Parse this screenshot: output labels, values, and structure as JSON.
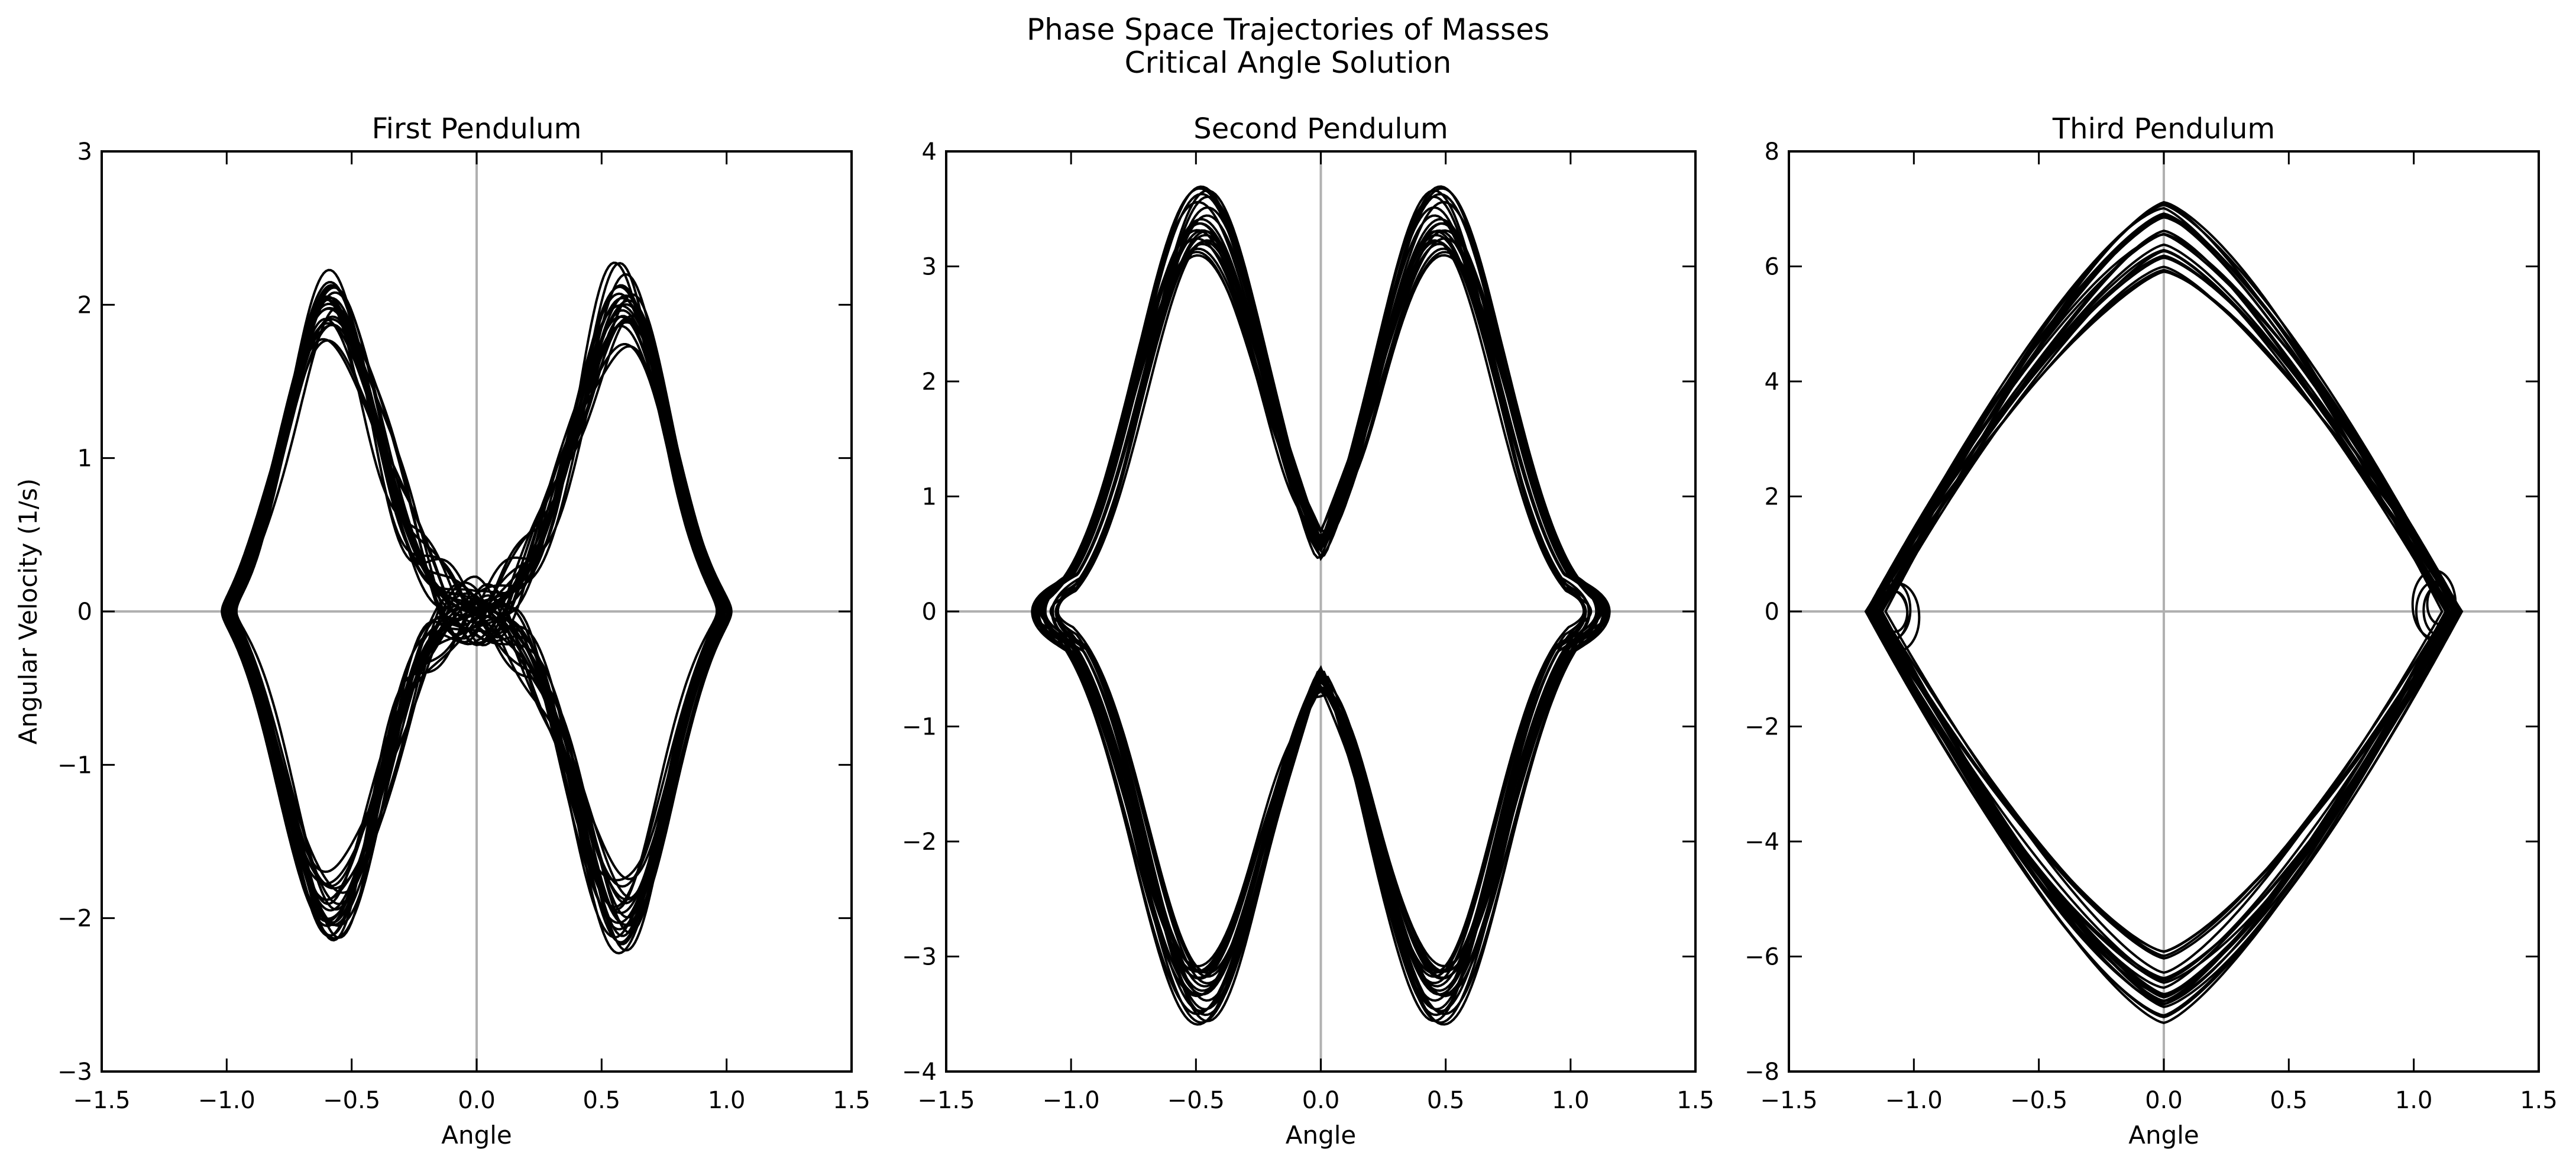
{
  "figure": {
    "title": "Phase Space Trajectories of Masses",
    "subtitle": "Critical Angle Solution",
    "line_color": "#000000",
    "zero_line_color": "#b0b0b0"
  },
  "chart_data": [
    {
      "type": "line",
      "title": "First Pendulum",
      "xlabel": "Angle",
      "ylabel": "Angular Velocity (1/s)",
      "xlim": [
        -1.5,
        1.5
      ],
      "ylim": [
        -3,
        3
      ],
      "xticks": [
        -1.5,
        -1.0,
        -0.5,
        0.0,
        0.5,
        1.0,
        1.5
      ],
      "xtick_labels": [
        "−1.5",
        "−1.0",
        "−0.5",
        "0.0",
        "0.5",
        "1.0",
        "1.5"
      ],
      "yticks": [
        -3,
        -2,
        -1,
        0,
        1,
        2,
        3
      ],
      "ytick_labels": [
        "−3",
        "−2",
        "−1",
        "0",
        "1",
        "2",
        "3"
      ],
      "zero_lines": true,
      "grid": false,
      "trajectory": {
        "amplitude_range": [
          0.95,
          1.03
        ],
        "peak_velocity": 2.65,
        "center_velocity": 1.75,
        "velocity_range": [
          1.3,
          2.65
        ],
        "loops": 22
      }
    },
    {
      "type": "line",
      "title": "Second Pendulum",
      "xlabel": "Angle",
      "ylabel": "",
      "xlim": [
        -1.5,
        1.5
      ],
      "ylim": [
        -4,
        4
      ],
      "xticks": [
        -1.5,
        -1.0,
        -0.5,
        0.0,
        0.5,
        1.0,
        1.5
      ],
      "xtick_labels": [
        "−1.5",
        "−1.0",
        "−0.5",
        "0.0",
        "0.5",
        "1.0",
        "1.5"
      ],
      "yticks": [
        -4,
        -3,
        -2,
        -1,
        0,
        1,
        2,
        3,
        4
      ],
      "ytick_labels": [
        "−4",
        "−3",
        "−2",
        "−1",
        "0",
        "1",
        "2",
        "3",
        "4"
      ],
      "zero_lines": true,
      "grid": false,
      "trajectory": {
        "amplitude_range": [
          1.05,
          1.16
        ],
        "peak_velocity": 3.95,
        "center_velocity": 0.85,
        "velocity_range": [
          0.85,
          3.95
        ],
        "loops": 22
      }
    },
    {
      "type": "line",
      "title": "Third Pendulum",
      "xlabel": "Angle",
      "ylabel": "",
      "xlim": [
        -1.5,
        1.5
      ],
      "ylim": [
        -8,
        8
      ],
      "xticks": [
        -1.5,
        -1.0,
        -0.5,
        0.0,
        0.5,
        1.0,
        1.5
      ],
      "xtick_labels": [
        "−1.5",
        "−1.0",
        "−0.5",
        "0.0",
        "0.5",
        "1.0",
        "1.5"
      ],
      "yticks": [
        -8,
        -6,
        -4,
        -2,
        0,
        2,
        4,
        6,
        8
      ],
      "ytick_labels": [
        "−8",
        "−6",
        "−4",
        "−2",
        "0",
        "2",
        "4",
        "6",
        "8"
      ],
      "zero_lines": true,
      "grid": false,
      "trajectory": {
        "amplitude_range": [
          1.1,
          1.2
        ],
        "peak_velocity": 7.2,
        "velocity_range": [
          5.7,
          7.2
        ],
        "loops": 22
      }
    }
  ]
}
